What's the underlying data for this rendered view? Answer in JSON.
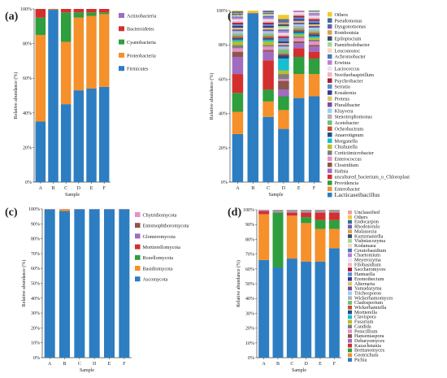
{
  "chart_data": [
    {
      "id": "panel-a",
      "panel_label": "(a)",
      "type": "bar",
      "stacked": true,
      "xlabel": "Sample",
      "ylabel": "Relative abundance (%)",
      "categories": [
        "A",
        "B",
        "C",
        "D",
        "E",
        "F"
      ],
      "ylim": [
        0,
        100
      ],
      "yticks": [
        "0%",
        "20%",
        "40%",
        "60%",
        "80%",
        "100%"
      ],
      "legend_position": "right",
      "series": [
        {
          "name": "Firmicutes",
          "color": "#2d7dc2",
          "values": [
            35,
            99.5,
            45,
            53,
            54,
            55
          ]
        },
        {
          "name": "Proteobacteria",
          "color": "#f5902a",
          "values": [
            50,
            0.3,
            36,
            42,
            42,
            42
          ]
        },
        {
          "name": "Cyanobacteria",
          "color": "#2e9e3e",
          "values": [
            10,
            0,
            17,
            3,
            2,
            1
          ]
        },
        {
          "name": "Bacteroidetes",
          "color": "#d32f2f",
          "values": [
            5,
            0.2,
            2,
            2,
            2,
            2
          ]
        },
        {
          "name": "Actinobacteria",
          "color": "#a06bc1",
          "values": [
            0,
            0,
            0,
            0,
            0,
            0
          ]
        }
      ]
    },
    {
      "id": "panel-b",
      "panel_label": "(b)",
      "type": "bar",
      "stacked": true,
      "xlabel": "Sample",
      "ylabel": "Relative abundance (%)",
      "categories": [
        "A",
        "B",
        "C",
        "D",
        "E",
        "F"
      ],
      "ylim": [
        0,
        100
      ],
      "yticks": [
        "0%",
        "20%",
        "40%",
        "60%",
        "80%",
        "100%"
      ],
      "legend_position": "right",
      "series": [
        {
          "name": "Lacticaseibacillus",
          "color": "#2d7dc2",
          "values": [
            28,
            98.5,
            38,
            31,
            49,
            50
          ]
        },
        {
          "name": "Enterobacter",
          "color": "#f5902a",
          "values": [
            13,
            0.3,
            9,
            11,
            14,
            13
          ]
        },
        {
          "name": "Providencia",
          "color": "#2e9e3e",
          "values": [
            11,
            0,
            7,
            8,
            10,
            9
          ]
        },
        {
          "name": "uncultured_bacterium_o_Chloroplast",
          "color": "#d32f2f",
          "values": [
            11,
            0,
            17,
            0,
            5,
            4
          ]
        },
        {
          "name": "Hafnia",
          "color": "#a06bc1",
          "values": [
            10,
            0,
            5,
            4,
            3,
            3
          ]
        },
        {
          "name": "Clostridium",
          "color": "#8c564b",
          "values": [
            3,
            0,
            1,
            5,
            1,
            1
          ]
        },
        {
          "name": "Enterococcus",
          "color": "#e88fc8",
          "values": [
            2,
            0,
            2,
            1,
            2,
            2
          ]
        },
        {
          "name": "Corticiimicrobacter",
          "color": "#7f7f7f",
          "values": [
            2,
            0,
            1,
            3,
            1,
            1
          ]
        },
        {
          "name": "Chishuiella",
          "color": "#bcbd22",
          "values": [
            2,
            0,
            2,
            2,
            1,
            1
          ]
        },
        {
          "name": "Morganella",
          "color": "#17becf",
          "values": [
            1,
            0,
            1,
            7,
            1,
            1
          ]
        },
        {
          "name": "Anaerotignum",
          "color": "#1f4e8c",
          "values": [
            1,
            0,
            1,
            2,
            1,
            1
          ]
        },
        {
          "name": "Ochrobactrum",
          "color": "#c94f2a",
          "values": [
            1,
            0,
            1,
            1,
            1,
            1
          ]
        },
        {
          "name": "Acetobacter",
          "color": "#6fbf73",
          "values": [
            1,
            0,
            1,
            2,
            1,
            1
          ]
        },
        {
          "name": "Stenotrophomonas",
          "color": "#b3b3b3",
          "values": [
            1,
            0,
            1,
            1,
            1,
            1
          ]
        },
        {
          "name": "Kluyvera",
          "color": "#9ad0f5",
          "values": [
            1,
            0,
            1,
            1,
            1,
            1
          ]
        },
        {
          "name": "Pluralibacter",
          "color": "#7a4e9c",
          "values": [
            1,
            0,
            1,
            1,
            1,
            1
          ]
        },
        {
          "name": "Proteus",
          "color": "#d9c66b",
          "values": [
            1,
            0,
            1,
            1,
            1,
            1
          ]
        },
        {
          "name": "Kosakonia",
          "color": "#3a3a8c",
          "values": [
            1,
            0,
            1,
            1,
            1,
            1
          ]
        },
        {
          "name": "Serratia",
          "color": "#5b8fcf",
          "values": [
            1,
            0,
            1,
            2,
            1,
            1
          ]
        },
        {
          "name": "Psychrobacter",
          "color": "#a61c3c",
          "values": [
            1,
            0,
            1,
            1,
            1,
            1
          ]
        },
        {
          "name": "Noviherbaspirillum",
          "color": "#f2b6b6",
          "values": [
            1,
            0,
            1,
            1,
            1,
            1
          ]
        },
        {
          "name": "Lactococcus",
          "color": "#e6e6fa",
          "values": [
            1,
            0,
            1,
            1,
            1,
            1
          ]
        },
        {
          "name": "Erwinia",
          "color": "#c47ad6",
          "values": [
            1,
            0,
            1,
            1,
            1,
            1
          ]
        },
        {
          "name": "Achromobacter",
          "color": "#4a7ab8",
          "values": [
            0.5,
            0,
            1,
            1,
            0.5,
            0.5
          ]
        },
        {
          "name": "Leuconostoc",
          "color": "#f8d6c1",
          "values": [
            0.5,
            0,
            0.5,
            1,
            0.5,
            0.5
          ]
        },
        {
          "name": "Paenirhodobacter",
          "color": "#9fd9a1",
          "values": [
            0.5,
            0,
            0.5,
            1,
            0.5,
            0.5
          ]
        },
        {
          "name": "Epilopiscium",
          "color": "#3b4f66",
          "values": [
            0.5,
            0,
            0.5,
            1,
            0.5,
            0.5
          ]
        },
        {
          "name": "Romboutsia",
          "color": "#d6a354",
          "values": [
            0.5,
            0,
            0.5,
            1,
            0.5,
            0.5
          ]
        },
        {
          "name": "Dysgonomonas",
          "color": "#6b5fb3",
          "values": [
            0.5,
            0,
            0.5,
            1,
            0.5,
            0.5
          ]
        },
        {
          "name": "Pseudomonas",
          "color": "#3c6e94",
          "values": [
            0.5,
            0,
            0.5,
            1,
            0.5,
            0.5
          ]
        },
        {
          "name": "Others",
          "color": "#f2c82e",
          "values": [
            2,
            1.2,
            1.5,
            2.5,
            1.5,
            1.5
          ]
        }
      ]
    },
    {
      "id": "panel-c",
      "panel_label": "(c)",
      "type": "bar",
      "stacked": true,
      "xlabel": "Sample",
      "ylabel": "Relative abundance (%)",
      "categories": [
        "A",
        "B",
        "C",
        "D",
        "E",
        "F"
      ],
      "ylim": [
        0,
        100
      ],
      "yticks": [
        "0%",
        "10%",
        "20%",
        "30%",
        "40%",
        "50%",
        "60%",
        "70%",
        "80%",
        "90%",
        "100%"
      ],
      "legend_position": "right",
      "series": [
        {
          "name": "Ascomycota",
          "color": "#2d7dc2",
          "values": [
            99.7,
            98.6,
            99.8,
            99.8,
            99.8,
            99.8
          ]
        },
        {
          "name": "Basidiomycota",
          "color": "#f5902a",
          "values": [
            0.2,
            1.2,
            0.1,
            0.1,
            0.1,
            0.1
          ]
        },
        {
          "name": "Rozellomycota",
          "color": "#2e9e3e",
          "values": [
            0,
            0,
            0,
            0,
            0,
            0
          ]
        },
        {
          "name": "Mortierellomycota",
          "color": "#d32f2f",
          "values": [
            0,
            0,
            0,
            0,
            0,
            0
          ]
        },
        {
          "name": "Glomeromycota",
          "color": "#a06bc1",
          "values": [
            0,
            0,
            0,
            0,
            0,
            0
          ]
        },
        {
          "name": "Entomophthoromycota",
          "color": "#8c564b",
          "values": [
            0,
            0,
            0,
            0,
            0,
            0
          ]
        },
        {
          "name": "Chytridiomycota",
          "color": "#e88fc8",
          "values": [
            0.1,
            0.2,
            0.1,
            0.1,
            0.1,
            0.1
          ]
        }
      ]
    },
    {
      "id": "panel-d",
      "panel_label": "(d)",
      "type": "bar",
      "stacked": true,
      "xlabel": "Sample",
      "ylabel": "Relative abundance (%)",
      "categories": [
        "A",
        "B",
        "C",
        "D",
        "E",
        "F"
      ],
      "ylim": [
        0,
        100
      ],
      "yticks": [
        "0%",
        "10%",
        "20%",
        "30%",
        "40%",
        "50%",
        "60%",
        "70%",
        "80%",
        "90%",
        "100%"
      ],
      "legend_position": "right",
      "series": [
        {
          "name": "Pichia",
          "color": "#2d7dc2",
          "values": [
            66,
            61,
            67,
            65,
            65,
            74
          ]
        },
        {
          "name": "Geotrichum",
          "color": "#f5902a",
          "values": [
            31,
            0,
            29,
            26,
            22,
            13
          ]
        },
        {
          "name": "Brettanomyces",
          "color": "#2e9e3e",
          "values": [
            0,
            37,
            0,
            4,
            6,
            6
          ]
        },
        {
          "name": "Kazachstania",
          "color": "#d32f2f",
          "values": [
            2,
            0,
            2,
            3,
            5,
            5
          ]
        },
        {
          "name": "Debaryomyces",
          "color": "#a06bc1",
          "values": [
            0.5,
            0.5,
            0.5,
            0.5,
            0.5,
            0.5
          ]
        },
        {
          "name": "Hanseniaspora",
          "color": "#8c564b",
          "values": [
            0.1,
            0.1,
            0.1,
            0.1,
            0.1,
            0.1
          ]
        },
        {
          "name": "Penicillium",
          "color": "#e88fc8",
          "values": [
            0.1,
            0.1,
            0.1,
            0.1,
            0.1,
            0.1
          ]
        },
        {
          "name": "Candida",
          "color": "#7f7f7f",
          "values": [
            0.1,
            0.1,
            0.1,
            0.1,
            0.1,
            0.1
          ]
        },
        {
          "name": "Fusarium",
          "color": "#bcbd22",
          "values": [
            0.1,
            0.1,
            0.1,
            0.1,
            0.1,
            0.1
          ]
        },
        {
          "name": "Clavispora",
          "color": "#17becf",
          "values": [
            0.1,
            0.1,
            0.1,
            0.1,
            0.1,
            0.1
          ]
        },
        {
          "name": "Mortierella",
          "color": "#1f4e8c",
          "values": [
            0.05,
            0.05,
            0.05,
            0.05,
            0.05,
            0.05
          ]
        },
        {
          "name": "Wickerhamiella",
          "color": "#c94f2a",
          "values": [
            0.05,
            0.05,
            0.05,
            0.05,
            0.05,
            0.05
          ]
        },
        {
          "name": "Cladosporium",
          "color": "#6fbf73",
          "values": [
            0.05,
            0.05,
            0.05,
            0.05,
            0.05,
            0.05
          ]
        },
        {
          "name": "Wickerhamomyces",
          "color": "#b3b3b3",
          "values": [
            0.05,
            0.05,
            0.05,
            0.05,
            0.05,
            0.05
          ]
        },
        {
          "name": "Trichosporon",
          "color": "#9ad0f5",
          "values": [
            0.05,
            0.05,
            0.05,
            0.05,
            0.05,
            0.05
          ]
        },
        {
          "name": "Yamadazyma",
          "color": "#7a4e9c",
          "values": [
            0.05,
            0.05,
            0.05,
            0.05,
            0.05,
            0.05
          ]
        },
        {
          "name": "Alternaria",
          "color": "#d9c66b",
          "values": [
            0.05,
            0.05,
            0.05,
            0.05,
            0.05,
            0.05
          ]
        },
        {
          "name": "Eremothecium",
          "color": "#3a3a8c",
          "values": [
            0.05,
            0.05,
            0.05,
            0.05,
            0.05,
            0.05
          ]
        },
        {
          "name": "Hannaella",
          "color": "#5b8fcf",
          "values": [
            0.05,
            0.05,
            0.05,
            0.05,
            0.05,
            0.05
          ]
        },
        {
          "name": "Saccharomyces",
          "color": "#a61c3c",
          "values": [
            0.05,
            0.05,
            0.05,
            0.05,
            0.05,
            0.05
          ]
        },
        {
          "name": "Filobasidium",
          "color": "#f2b6b6",
          "values": [
            0.05,
            0.05,
            0.05,
            0.05,
            0.05,
            0.05
          ]
        },
        {
          "name": "Meyerozyma",
          "color": "#e6e6fa",
          "values": [
            0.05,
            0.05,
            0.05,
            0.05,
            0.05,
            0.05
          ]
        },
        {
          "name": "Chaetomium",
          "color": "#c47ad6",
          "values": [
            0.05,
            0.05,
            0.05,
            0.05,
            0.05,
            0.05
          ]
        },
        {
          "name": "Ceratobasidium",
          "color": "#4a7ab8",
          "values": [
            0.05,
            0.05,
            0.05,
            0.05,
            0.05,
            0.05
          ]
        },
        {
          "name": "Kodamaea",
          "color": "#f8d6c1",
          "values": [
            0.05,
            0.05,
            0.05,
            0.05,
            0.05,
            0.05
          ]
        },
        {
          "name": "Vishniacozyma",
          "color": "#9fd9a1",
          "values": [
            0.05,
            0.05,
            0.05,
            0.05,
            0.05,
            0.05
          ]
        },
        {
          "name": "Kurtzmaniella",
          "color": "#3b4f66",
          "values": [
            0.05,
            0.05,
            0.05,
            0.05,
            0.05,
            0.05
          ]
        },
        {
          "name": "Malassezia",
          "color": "#d6a354",
          "values": [
            0.05,
            0.05,
            0.05,
            0.05,
            0.05,
            0.05
          ]
        },
        {
          "name": "Rhodotorula",
          "color": "#6b5fb3",
          "values": [
            0.05,
            0.05,
            0.05,
            0.05,
            0.05,
            0.05
          ]
        },
        {
          "name": "Endocarpon",
          "color": "#3c6e94",
          "values": [
            0.05,
            0.05,
            0.05,
            0.05,
            0.05,
            0.05
          ]
        },
        {
          "name": "Others",
          "color": "#f2c82e",
          "values": [
            0.3,
            0.5,
            0.5,
            0.5,
            0.5,
            0.5
          ]
        },
        {
          "name": "Unclassified",
          "color": "#f59ab0",
          "values": [
            0.3,
            0.3,
            0.3,
            0.3,
            0.3,
            0.3
          ]
        }
      ]
    }
  ]
}
